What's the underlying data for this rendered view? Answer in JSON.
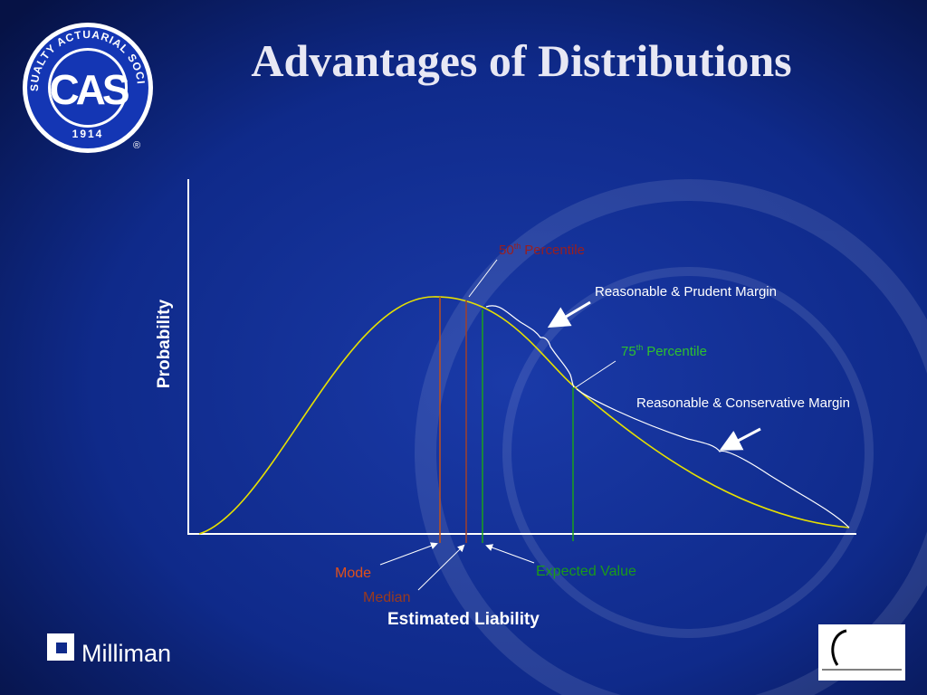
{
  "header": {
    "title": "Advantages of Distributions"
  },
  "logo": {
    "ring_text": "CASUALTY ACTUARIAL SOCIETY",
    "initials": "CAS",
    "year": "1914",
    "registered": "®"
  },
  "diagram": {
    "y_axis_label": "Probability",
    "x_axis_label": "Estimated Liability",
    "percentile_50": {
      "number": "50",
      "ordinal": "th",
      "label": "Percentile"
    },
    "percentile_75": {
      "number": "75",
      "ordinal": "th",
      "label": "Percentile"
    },
    "prudent_margin": "Reasonable & Prudent Margin",
    "conservative_margin": "Reasonable & Conservative Margin",
    "mode": "Mode",
    "median": "Median",
    "expected_value": "Expected Value"
  },
  "footer": {
    "brand": "Milliman"
  }
}
